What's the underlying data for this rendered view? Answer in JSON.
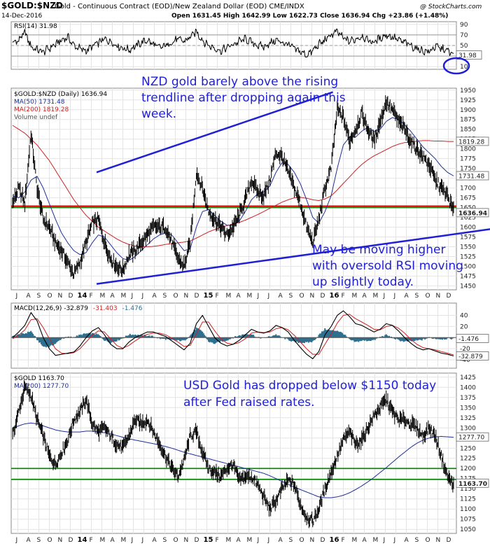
{
  "header": {
    "title": "$GOLD:$NZD",
    "subtitle": "Gold - Continuous Contract (EOD)/New Zealand Dollar (EOD)  CME/INDX",
    "date": "14-Dec-2016",
    "ohlc": "Open 1631.45  High 1642.99  Low 1622.73  Close 1636.94  Chg +23.86 (+1.48%)",
    "watermark": "@ StockCharts.com"
  },
  "colors": {
    "price": "#000000",
    "ma50": "#1f2f9a",
    "ma200": "#cc2222",
    "macd_hist": "#2e6e8e",
    "red_line": "#e00000",
    "green_line": "#118811",
    "trend": "#1f1fd6",
    "annotation": "#1f1fd6",
    "grid": "#e4e4e4"
  },
  "chart_data": [
    {
      "type": "line",
      "name": "rsi-panel",
      "legend": "RSI(14) 31.98",
      "last_value": 31.98,
      "ylim": [
        5,
        95
      ],
      "ticks": [
        10,
        30,
        50,
        70,
        90
      ],
      "reference_lines": [
        30,
        50,
        70
      ],
      "series": [
        {
          "name": "RSI(14)",
          "values": [
            55,
            60,
            75,
            48,
            42,
            38,
            45,
            52,
            60,
            66,
            50,
            44,
            40,
            48,
            55,
            62,
            58,
            50,
            45,
            42,
            48,
            55,
            60,
            52,
            46,
            50,
            56,
            62,
            58,
            66,
            76,
            60,
            50,
            45,
            40,
            46,
            52,
            58,
            62,
            56,
            50,
            48,
            54,
            60,
            56,
            52,
            44,
            38,
            32,
            40,
            52,
            60,
            70,
            76,
            64,
            58,
            62,
            68,
            60,
            56,
            64,
            70,
            66,
            60,
            56,
            50,
            44,
            40,
            38,
            48,
            44,
            40,
            32
          ]
        }
      ]
    },
    {
      "type": "line",
      "name": "price-panel",
      "legend": [
        "$GOLD:$NZD (Daily) 1636.94",
        "MA(50) 1731.48",
        "MA(200) 1819.28",
        "Volume undef"
      ],
      "ylim": [
        1440,
        1955
      ],
      "ticks": [
        1450,
        1475,
        1500,
        1525,
        1550,
        1575,
        1600,
        1625,
        1650,
        1675,
        1700,
        1725,
        1750,
        1775,
        1800,
        1825,
        1850,
        1875,
        1900,
        1925,
        1950
      ],
      "tags": [
        {
          "value": 1819.28,
          "label": "1819.28"
        },
        {
          "value": 1731.48,
          "label": "1731.48"
        },
        {
          "value": 1636.94,
          "label": "1636.94"
        }
      ],
      "horizontal_lines": [
        {
          "value": 1652,
          "color": "red"
        },
        {
          "value": 1652,
          "color": "green"
        }
      ],
      "trendlines": [
        {
          "from": {
            "t": 7.5,
            "v": 1740
          },
          "to": {
            "t": 30,
            "v": 1945
          }
        },
        {
          "from": {
            "t": 7.5,
            "v": 1455
          },
          "to": {
            "t": 48.5,
            "v": 1608
          }
        }
      ],
      "annotations": [
        {
          "lines": [
            "NZD gold barely above the rising",
            "trendline after dropping again this",
            "week."
          ]
        },
        {
          "lines": [
            "May be moving higher",
            "with oversold RSI moving",
            "up slightly today."
          ]
        }
      ],
      "series": [
        {
          "name": "$GOLD:$NZD",
          "values": [
            1660,
            1700,
            1660,
            1840,
            1700,
            1620,
            1600,
            1560,
            1540,
            1510,
            1480,
            1510,
            1560,
            1610,
            1620,
            1560,
            1520,
            1500,
            1490,
            1530,
            1540,
            1560,
            1580,
            1600,
            1600,
            1600,
            1560,
            1520,
            1500,
            1560,
            1740,
            1700,
            1640,
            1620,
            1600,
            1580,
            1600,
            1630,
            1670,
            1720,
            1690,
            1680,
            1720,
            1790,
            1780,
            1740,
            1700,
            1660,
            1600,
            1560,
            1620,
            1700,
            1750,
            1900,
            1880,
            1820,
            1850,
            1890,
            1850,
            1820,
            1870,
            1920,
            1900,
            1870,
            1850,
            1820,
            1800,
            1780,
            1760,
            1720,
            1700,
            1680,
            1640
          ]
        },
        {
          "name": "MA(50)",
          "values": [
            1680,
            1675,
            1690,
            1720,
            1730,
            1700,
            1660,
            1620,
            1585,
            1560,
            1540,
            1530,
            1535,
            1560,
            1580,
            1575,
            1555,
            1535,
            1520,
            1515,
            1525,
            1540,
            1555,
            1570,
            1580,
            1585,
            1580,
            1560,
            1540,
            1545,
            1600,
            1640,
            1645,
            1630,
            1615,
            1605,
            1605,
            1615,
            1640,
            1670,
            1685,
            1690,
            1705,
            1740,
            1765,
            1760,
            1740,
            1710,
            1670,
            1625,
            1610,
            1640,
            1680,
            1750,
            1810,
            1830,
            1830,
            1845,
            1855,
            1845,
            1850,
            1870,
            1880,
            1875,
            1862,
            1845,
            1825,
            1805,
            1790,
            1775,
            1755,
            1740,
            1731
          ]
        },
        {
          "name": "MA(200)",
          "values": [
            1860,
            1850,
            1840,
            1825,
            1810,
            1790,
            1770,
            1745,
            1720,
            1695,
            1670,
            1650,
            1630,
            1615,
            1600,
            1590,
            1580,
            1570,
            1562,
            1556,
            1552,
            1550,
            1550,
            1551,
            1553,
            1556,
            1558,
            1560,
            1562,
            1565,
            1572,
            1580,
            1588,
            1594,
            1600,
            1604,
            1608,
            1612,
            1618,
            1625,
            1632,
            1640,
            1648,
            1656,
            1664,
            1670,
            1675,
            1676,
            1674,
            1670,
            1668,
            1672,
            1680,
            1695,
            1712,
            1728,
            1745,
            1760,
            1772,
            1782,
            1790,
            1798,
            1806,
            1812,
            1816,
            1818,
            1820,
            1821,
            1821,
            1820,
            1820,
            1819,
            1819
          ]
        }
      ]
    },
    {
      "type": "line",
      "name": "macd-panel",
      "legend": [
        "MACD(12,26,9) -32.879",
        "-31.403",
        "-1.476"
      ],
      "ylim": [
        -55,
        62
      ],
      "ticks": [
        -40,
        -20,
        0,
        20,
        40
      ],
      "tags": [
        {
          "value": -1.476,
          "label": "-1.476"
        },
        {
          "value": -32.879,
          "label": "-32.879"
        }
      ],
      "series": [
        {
          "name": "MACD",
          "values": [
            0,
            10,
            22,
            45,
            30,
            0,
            -20,
            -32,
            -30,
            -28,
            -26,
            -15,
            0,
            12,
            18,
            5,
            -12,
            -20,
            -20,
            -8,
            0,
            5,
            10,
            10,
            6,
            2,
            -6,
            -14,
            -22,
            -10,
            25,
            40,
            20,
            0,
            -10,
            -15,
            -12,
            -5,
            5,
            15,
            10,
            8,
            12,
            22,
            18,
            10,
            -5,
            -18,
            -30,
            -38,
            -25,
            5,
            20,
            40,
            48,
            38,
            25,
            22,
            16,
            10,
            15,
            25,
            22,
            12,
            0,
            -10,
            -18,
            -22,
            -20,
            -24,
            -28,
            -30,
            -33
          ]
        },
        {
          "name": "Signal",
          "values": [
            -2,
            4,
            14,
            32,
            34,
            18,
            -2,
            -20,
            -28,
            -29,
            -27,
            -20,
            -8,
            4,
            12,
            10,
            -2,
            -14,
            -19,
            -14,
            -6,
            1,
            6,
            8,
            8,
            5,
            -1,
            -8,
            -16,
            -14,
            6,
            28,
            28,
            12,
            -2,
            -10,
            -12,
            -9,
            -2,
            8,
            10,
            9,
            10,
            16,
            18,
            14,
            4,
            -8,
            -20,
            -30,
            -30,
            -12,
            6,
            26,
            40,
            42,
            34,
            28,
            22,
            15,
            14,
            20,
            22,
            17,
            8,
            -3,
            -12,
            -18,
            -20,
            -22,
            -25,
            -28,
            -31
          ]
        }
      ]
    },
    {
      "type": "line",
      "name": "usd-gold-panel",
      "legend": [
        "$GOLD 1163.70",
        "MA(200) 1277.70"
      ],
      "ylim": [
        1040,
        1435
      ],
      "ticks": [
        1050,
        1075,
        1100,
        1125,
        1150,
        1175,
        1200,
        1225,
        1250,
        1275,
        1300,
        1325,
        1350,
        1375,
        1400,
        1425
      ],
      "tags": [
        {
          "value": 1277.7,
          "label": "1277.70"
        },
        {
          "value": 1163.7,
          "label": "1163.70"
        }
      ],
      "horizontal_lines": [
        {
          "value": 1200,
          "color": "green"
        },
        {
          "value": 1173,
          "color": "green"
        }
      ],
      "annotations": [
        {
          "lines": [
            "USD Gold has dropped below $1150 today",
            "after Fed raised rates."
          ]
        }
      ],
      "series": [
        {
          "name": "$GOLD",
          "values": [
            1280,
            1340,
            1400,
            1380,
            1320,
            1280,
            1230,
            1210,
            1240,
            1270,
            1320,
            1340,
            1370,
            1310,
            1290,
            1300,
            1280,
            1260,
            1250,
            1280,
            1320,
            1310,
            1320,
            1290,
            1260,
            1230,
            1200,
            1180,
            1220,
            1280,
            1290,
            1240,
            1200,
            1190,
            1180,
            1200,
            1210,
            1170,
            1180,
            1180,
            1160,
            1130,
            1100,
            1120,
            1150,
            1170,
            1160,
            1110,
            1080,
            1070,
            1100,
            1150,
            1190,
            1230,
            1270,
            1290,
            1260,
            1270,
            1300,
            1330,
            1350,
            1370,
            1340,
            1320,
            1320,
            1310,
            1300,
            1280,
            1300,
            1280,
            1230,
            1180,
            1160
          ]
        },
        {
          "name": "MA(200)",
          "values": [
            1300,
            1305,
            1310,
            1312,
            1310,
            1305,
            1300,
            1295,
            1292,
            1290,
            1290,
            1290,
            1292,
            1292,
            1290,
            1288,
            1285,
            1281,
            1277,
            1273,
            1270,
            1267,
            1264,
            1261,
            1258,
            1254,
            1250,
            1245,
            1240,
            1236,
            1232,
            1228,
            1224,
            1220,
            1216,
            1212,
            1208,
            1204,
            1200,
            1196,
            1192,
            1188,
            1182,
            1175,
            1168,
            1161,
            1154,
            1148,
            1142,
            1136,
            1130,
            1128,
            1128,
            1130,
            1134,
            1140,
            1148,
            1157,
            1167,
            1178,
            1190,
            1202,
            1215,
            1228,
            1240,
            1252,
            1262,
            1270,
            1275,
            1278,
            1279,
            1278,
            1277
          ]
        }
      ]
    }
  ],
  "x_axis": {
    "months": [
      "J",
      "A",
      "S",
      "O",
      "N",
      "D",
      "14",
      "F",
      "M",
      "A",
      "M",
      "J",
      "J",
      "A",
      "S",
      "O",
      "N",
      "D",
      "15",
      "F",
      "M",
      "A",
      "M",
      "J",
      "J",
      "A",
      "S",
      "O",
      "N",
      "D",
      "16",
      "F",
      "M",
      "A",
      "M",
      "J",
      "J",
      "A",
      "S",
      "O",
      "N",
      "D"
    ],
    "year_labels": [
      "14",
      "15",
      "16"
    ]
  }
}
